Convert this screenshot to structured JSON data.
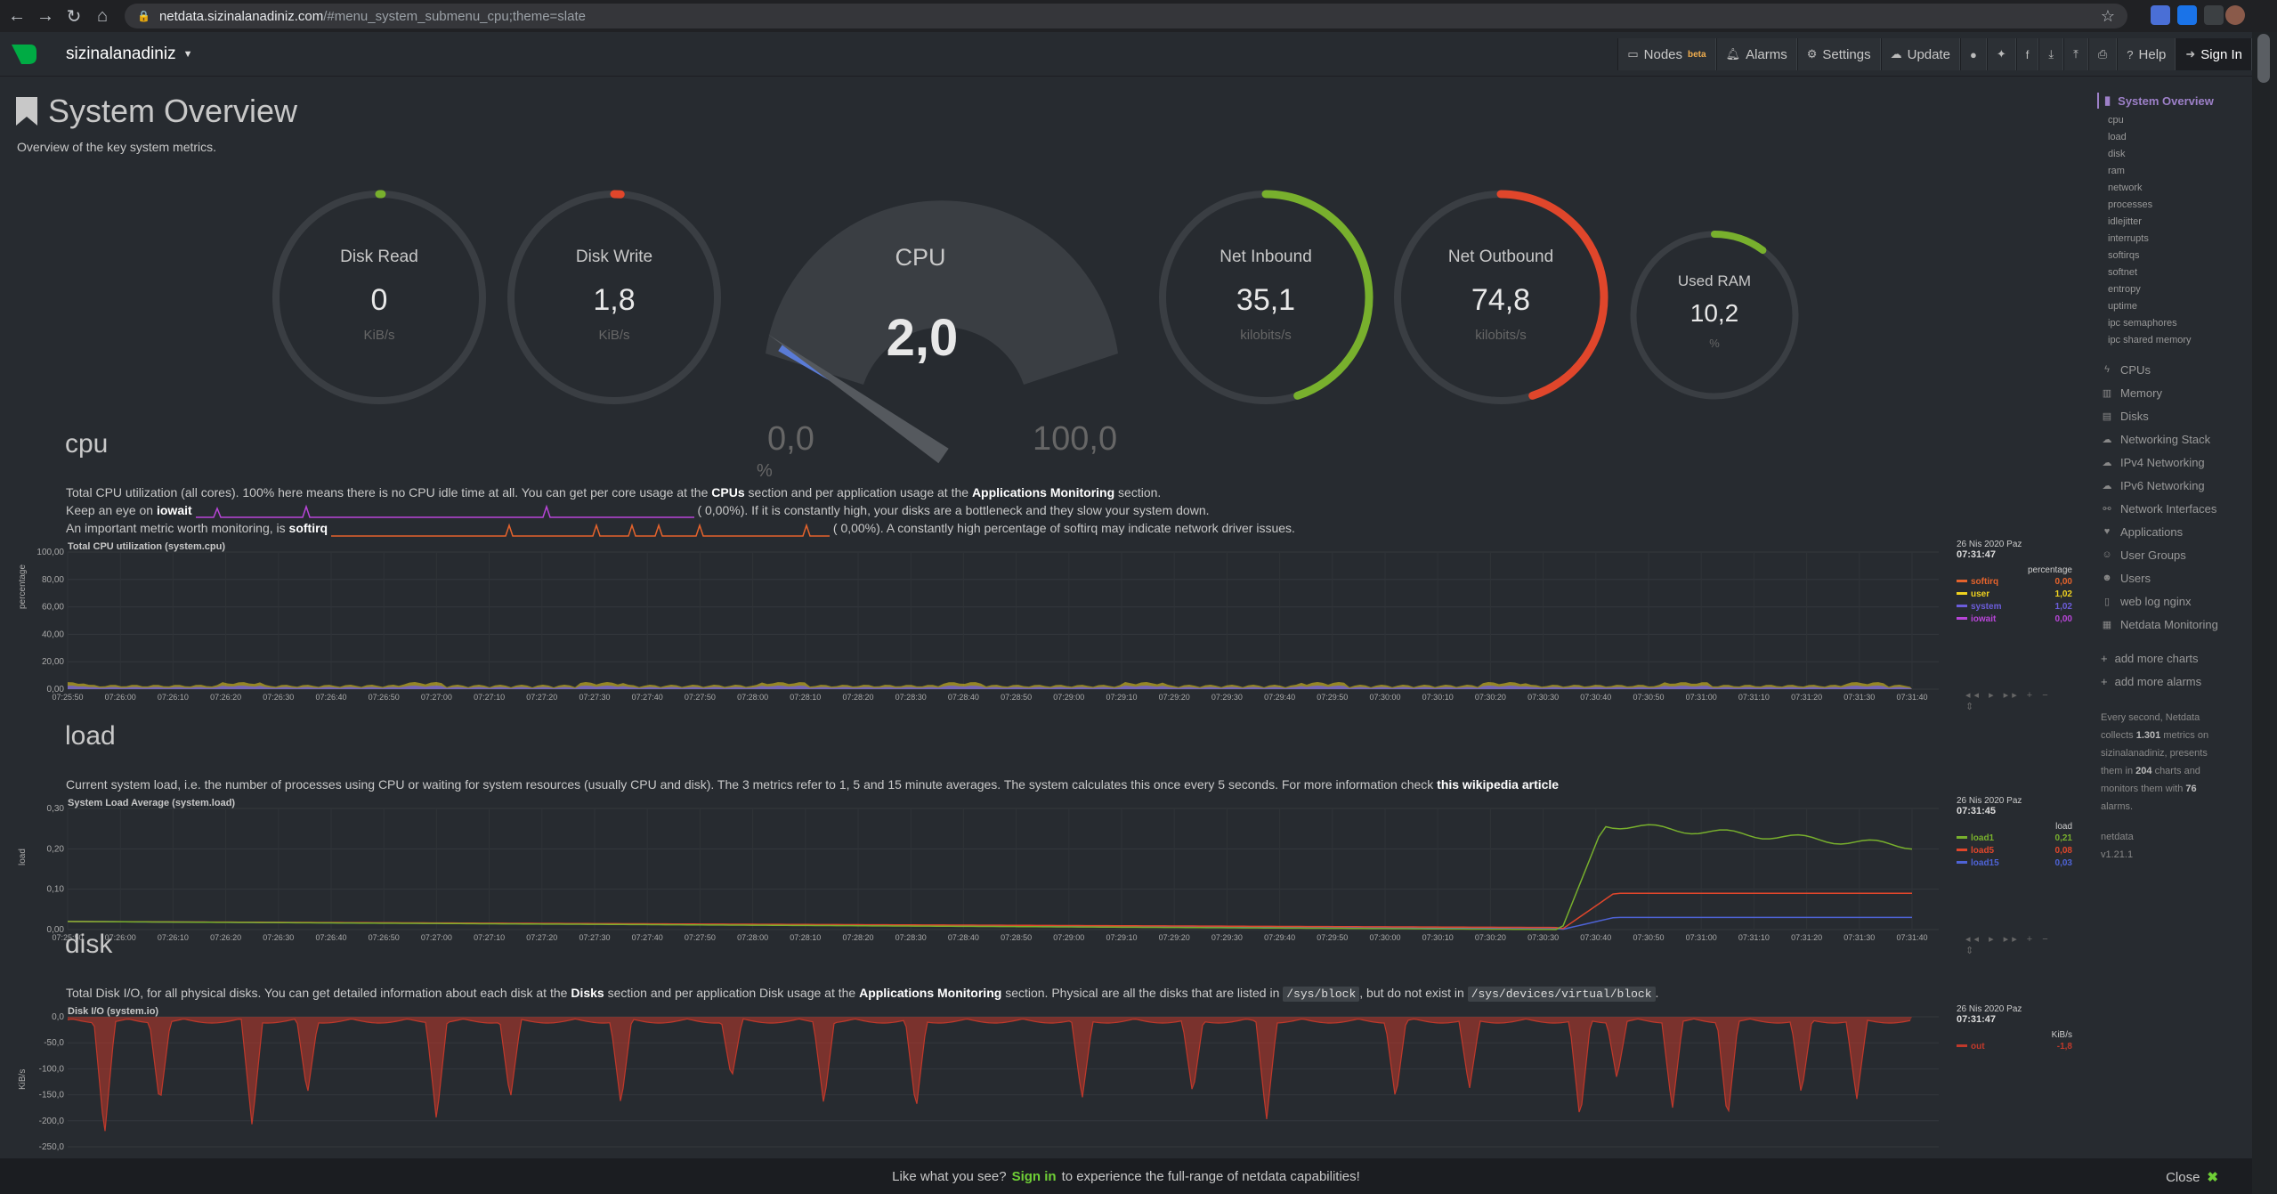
{
  "browser": {
    "url_host": "netdata.sizinalanadiniz.com",
    "url_path": "/#menu_system_submenu_cpu;theme=slate"
  },
  "header": {
    "hostname": "sizinalanadiniz",
    "nav": [
      {
        "label": "Nodes",
        "badge": "beta",
        "icon": "desktop-icon"
      },
      {
        "label": "Alarms",
        "icon": "bell-icon"
      },
      {
        "label": "Settings",
        "icon": "gear-icon"
      },
      {
        "label": "Update",
        "icon": "cloud-download-icon"
      }
    ],
    "help_label": "Help",
    "signin_label": "Sign In"
  },
  "page": {
    "title": "System Overview",
    "subtitle": "Overview of the key system metrics."
  },
  "gauges": {
    "disk_read": {
      "label": "Disk Read",
      "value": "0",
      "unit": "KiB/s",
      "level": 0.0
    },
    "disk_write": {
      "label": "Disk Write",
      "value": "1,8",
      "unit": "KiB/s",
      "level": 0.01
    },
    "cpu": {
      "label": "CPU",
      "value": "2,0",
      "min": "0,0",
      "max": "100,0",
      "unit": "%",
      "level": 0.02
    },
    "net_inbound": {
      "label": "Net Inbound",
      "value": "35,1",
      "unit": "kilobits/s",
      "level": 0.45
    },
    "net_outbound": {
      "label": "Net Outbound",
      "value": "74,8",
      "unit": "kilobits/s",
      "level": 0.45
    },
    "used_ram": {
      "label": "Used RAM",
      "value": "10,2",
      "unit": "%",
      "level": 0.102
    }
  },
  "sections": {
    "cpu": {
      "title": "cpu",
      "line1_a": "Total CPU utilization (all cores). 100% here means there is no CPU idle time at all. You can get per core usage at the",
      "line1_l1": "CPUs",
      "line1_b": "section and per application usage at the",
      "line1_l2": "Applications Monitoring",
      "line1_c": "section.",
      "line2_a": "Keep an eye on",
      "line2_b": "iowait",
      "line2_c": "0,00%). If it is constantly high, your disks are a bottleneck and they slow your system down.",
      "line3_a": "An important metric worth monitoring, is",
      "line3_b": "softirq",
      "line3_c": "0,00%). A constantly high percentage of softirq may indicate network driver issues.",
      "paren": "("
    },
    "load": {
      "title": "load",
      "text_a": "Current system load, i.e. the number of processes using CPU or waiting for system resources (usually CPU and disk). The 3 metrics refer to 1, 5 and 15 minute averages. The system calculates this once every 5 seconds. For more information check",
      "text_link": "this wikipedia article"
    },
    "disk": {
      "title": "disk",
      "text_a": "Total Disk I/O, for all physical disks. You can get detailed information about each disk at the",
      "text_l1": "Disks",
      "text_b": "section and per application Disk usage at the",
      "text_l2": "Applications Monitoring",
      "text_c": "section. Physical are all the disks that are listed in",
      "text_code1": "/sys/block",
      "text_d": ", but do not exist in",
      "text_code2": "/sys/devices/virtual/block",
      "text_e": "."
    }
  },
  "chart_data": [
    {
      "type": "area",
      "title": "Total CPU utilization (system.cpu)",
      "ylabel": "percentage",
      "ylim": [
        0,
        100
      ],
      "yticks": [
        "100,00",
        "80,00",
        "60,00",
        "40,00",
        "20,00",
        "0,00"
      ],
      "xticks": [
        "07:25:50",
        "07:26:00",
        "07:26:10",
        "07:26:20",
        "07:26:30",
        "07:26:40",
        "07:26:50",
        "07:27:00",
        "07:27:10",
        "07:27:20",
        "07:27:30",
        "07:27:40",
        "07:27:50",
        "07:28:00",
        "07:28:10",
        "07:28:20",
        "07:28:30",
        "07:28:40",
        "07:28:50",
        "07:29:00",
        "07:29:10",
        "07:29:20",
        "07:29:30",
        "07:29:40",
        "07:29:50",
        "07:30:00",
        "07:30:10",
        "07:30:20",
        "07:30:30",
        "07:30:40",
        "07:30:50",
        "07:31:00",
        "07:31:10",
        "07:31:20",
        "07:31:30",
        "07:31:40"
      ],
      "legend_date": "26 Nis 2020 Paz",
      "legend_time": "07:31:47",
      "legend_unit": "percentage",
      "series": [
        {
          "name": "softirq",
          "color": "#e5632c",
          "last": "0,00"
        },
        {
          "name": "user",
          "color": "#f0d21f",
          "last": "1,02"
        },
        {
          "name": "system",
          "color": "#6c5ddb",
          "last": "1,02"
        },
        {
          "name": "iowait",
          "color": "#b845d8",
          "last": "0,00"
        }
      ]
    },
    {
      "type": "line",
      "title": "System Load Average (system.load)",
      "ylabel": "load",
      "ylim": [
        0,
        0.3
      ],
      "yticks": [
        "0,30",
        "0,20",
        "0,10",
        "0,00"
      ],
      "xticks": [
        "07:25:50",
        "07:26:00",
        "07:26:10",
        "07:26:20",
        "07:26:30",
        "07:26:40",
        "07:26:50",
        "07:27:00",
        "07:27:10",
        "07:27:20",
        "07:27:30",
        "07:27:40",
        "07:27:50",
        "07:28:00",
        "07:28:10",
        "07:28:20",
        "07:28:30",
        "07:28:40",
        "07:28:50",
        "07:29:00",
        "07:29:10",
        "07:29:20",
        "07:29:30",
        "07:29:40",
        "07:29:50",
        "07:30:00",
        "07:30:10",
        "07:30:20",
        "07:30:30",
        "07:30:40",
        "07:30:50",
        "07:31:00",
        "07:31:10",
        "07:31:20",
        "07:31:30",
        "07:31:40"
      ],
      "legend_date": "26 Nis 2020 Paz",
      "legend_time": "07:31:45",
      "legend_unit": "load",
      "series": [
        {
          "name": "load1",
          "color": "#78b02d",
          "last": "0,21"
        },
        {
          "name": "load5",
          "color": "#e0462b",
          "last": "0,08"
        },
        {
          "name": "load15",
          "color": "#4e63d6",
          "last": "0,03"
        }
      ]
    },
    {
      "type": "area",
      "title": "Disk I/O (system.io)",
      "ylabel": "KiB/s",
      "ylim": [
        -300,
        0
      ],
      "yticks": [
        "0,0",
        "-50,0",
        "-100,0",
        "-150,0",
        "-200,0",
        "-250,0"
      ],
      "legend_date": "26 Nis 2020 Paz",
      "legend_time": "07:31:47",
      "legend_unit": "KiB/s",
      "series": [
        {
          "name": "out",
          "color": "#c0392b",
          "last": "-1,8"
        }
      ]
    }
  ],
  "sidebar": {
    "active": "System Overview",
    "subitems": [
      "cpu",
      "load",
      "disk",
      "ram",
      "network",
      "processes",
      "idlejitter",
      "interrupts",
      "softirqs",
      "softnet",
      "entropy",
      "uptime",
      "ipc semaphores",
      "ipc shared memory"
    ],
    "items": [
      {
        "label": "CPUs",
        "icon": "bolt-icon"
      },
      {
        "label": "Memory",
        "icon": "microchip-icon"
      },
      {
        "label": "Disks",
        "icon": "hdd-icon"
      },
      {
        "label": "Networking Stack",
        "icon": "cloud-icon"
      },
      {
        "label": "IPv4 Networking",
        "icon": "cloud-icon"
      },
      {
        "label": "IPv6 Networking",
        "icon": "cloud-icon"
      },
      {
        "label": "Network Interfaces",
        "icon": "sitemap-icon"
      },
      {
        "label": "Applications",
        "icon": "heartbeat-icon"
      },
      {
        "label": "User Groups",
        "icon": "users-icon"
      },
      {
        "label": "Users",
        "icon": "user-icon"
      },
      {
        "label": "web log nginx",
        "icon": "file-icon"
      },
      {
        "label": "Netdata Monitoring",
        "icon": "bar-chart-icon"
      }
    ],
    "add_charts": "add more charts",
    "add_alarms": "add more alarms",
    "info_a": "Every second, Netdata collects",
    "info_metrics": "1.301",
    "info_b": "metrics on sizinalanadiniz, presents them in",
    "info_charts": "204",
    "info_c": "charts and monitors them with",
    "info_alarms": "76",
    "info_d": "alarms.",
    "version_name": "netdata",
    "version": "v1.21.1"
  },
  "banner": {
    "text_a": "Like what you see?",
    "link": "Sign in",
    "text_b": "to experience the full-range of netdata capabilities!",
    "close": "Close"
  }
}
